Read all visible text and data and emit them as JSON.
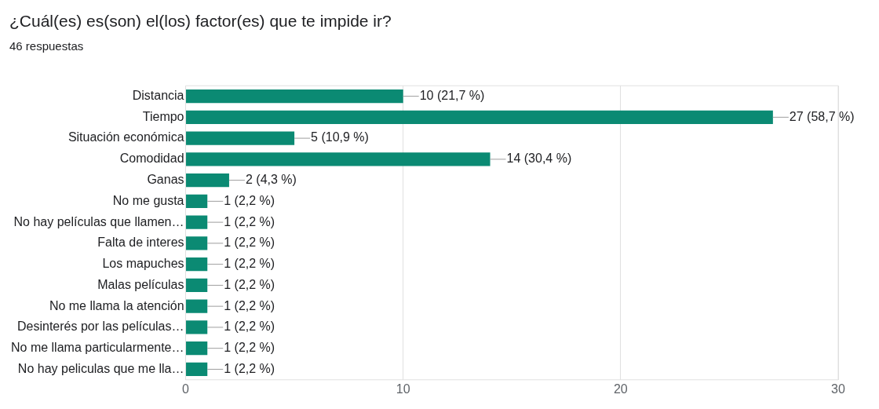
{
  "chart_data": {
    "type": "bar",
    "orientation": "horizontal",
    "title": "¿Cuál(es) es(son) el(los) factor(es) que te impide ir?",
    "subtitle": "46 respuestas",
    "categories": [
      "Distancia",
      "Tiempo",
      "Situación económica",
      "Comodidad",
      "Ganas",
      "No me gusta",
      "No hay películas que llamen…",
      "Falta de interes",
      "Los mapuches",
      "Malas películas",
      "No me llama la atención",
      "Desinterés por las películas…",
      "No me llama particularmente…",
      "No hay peliculas que me lla…"
    ],
    "values": [
      10,
      27,
      5,
      14,
      2,
      1,
      1,
      1,
      1,
      1,
      1,
      1,
      1,
      1
    ],
    "value_labels": [
      "10 (21,7 %)",
      "27 (58,7 %)",
      "5 (10,9 %)",
      "14 (30,4 %)",
      "2 (4,3 %)",
      "1 (2,2 %)",
      "1 (2,2 %)",
      "1 (2,2 %)",
      "1 (2,2 %)",
      "1 (2,2 %)",
      "1 (2,2 %)",
      "1 (2,2 %)",
      "1 (2,2 %)",
      "1 (2,2 %)"
    ],
    "color": "#0b8a73",
    "xlim": [
      0,
      30
    ],
    "xticks": [
      0,
      10,
      20,
      30
    ],
    "grid": "x",
    "legend": false
  }
}
